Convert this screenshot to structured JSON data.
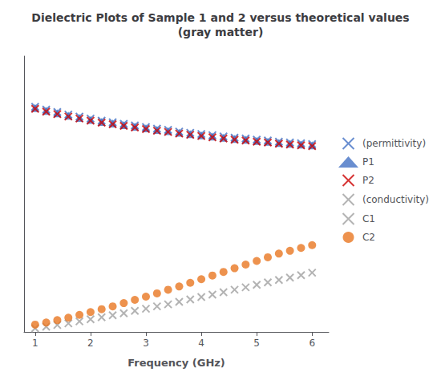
{
  "chart_data": {
    "type": "scatter",
    "title": "Dielectric Plots of Sample 1 and 2 versus theoretical values\n(gray matter)",
    "xlabel": "Frequency (GHz)",
    "x": [
      1.0,
      1.2,
      1.4,
      1.6,
      1.8,
      2.0,
      2.2,
      2.4,
      2.6,
      2.8,
      3.0,
      3.2,
      3.4,
      3.6,
      3.8,
      4.0,
      4.2,
      4.4,
      4.6,
      4.8,
      5.0,
      5.2,
      5.4,
      5.6,
      5.8,
      6.0
    ],
    "series": [
      {
        "name": "(permittivity)",
        "color": "#4472C4",
        "marker": "x",
        "values": [
          5.55,
          5.48,
          5.42,
          5.36,
          5.31,
          5.26,
          5.21,
          5.17,
          5.13,
          5.09,
          5.05,
          5.01,
          4.98,
          4.94,
          4.91,
          4.88,
          4.85,
          4.82,
          4.79,
          4.77,
          4.74,
          4.72,
          4.69,
          4.67,
          4.65,
          4.63
        ]
      },
      {
        "name": "P1",
        "color": "#4472C4",
        "marker": "triangle",
        "values": [
          5.52,
          5.45,
          5.39,
          5.33,
          5.28,
          5.23,
          5.18,
          5.14,
          5.1,
          5.06,
          5.02,
          4.98,
          4.95,
          4.91,
          4.88,
          4.85,
          4.82,
          4.79,
          4.76,
          4.74,
          4.71,
          4.69,
          4.66,
          4.64,
          4.62,
          4.6
        ]
      },
      {
        "name": "P2",
        "color": "#CC0000",
        "marker": "x",
        "values": [
          5.5,
          5.43,
          5.37,
          5.31,
          5.26,
          5.21,
          5.16,
          5.12,
          5.08,
          5.04,
          5.0,
          4.96,
          4.93,
          4.89,
          4.86,
          4.83,
          4.8,
          4.77,
          4.74,
          4.72,
          4.69,
          4.67,
          4.64,
          4.62,
          4.6,
          4.58
        ]
      },
      {
        "name": "(conductivity)",
        "color": "#A0A0A0",
        "marker": "x",
        "values": [
          null,
          null,
          null,
          null,
          null,
          null,
          null,
          null,
          null,
          null,
          null,
          null,
          null,
          null,
          null,
          null,
          null,
          null,
          null,
          null,
          null,
          null,
          null,
          null,
          null,
          null
        ]
      },
      {
        "name": "C1",
        "color": "#A0A0A0",
        "marker": "x",
        "values": [
          0.09,
          0.13,
          0.17,
          0.21,
          0.26,
          0.31,
          0.36,
          0.41,
          0.46,
          0.52,
          0.57,
          0.63,
          0.68,
          0.74,
          0.8,
          0.86,
          0.92,
          0.98,
          1.04,
          1.1,
          1.16,
          1.22,
          1.28,
          1.34,
          1.4,
          1.46
        ]
      },
      {
        "name": "C2",
        "color": "#E87722",
        "marker": "circle",
        "values": [
          0.18,
          0.23,
          0.29,
          0.35,
          0.42,
          0.49,
          0.56,
          0.63,
          0.71,
          0.79,
          0.87,
          0.95,
          1.04,
          1.12,
          1.21,
          1.3,
          1.39,
          1.48,
          1.57,
          1.66,
          1.75,
          1.84,
          1.93,
          2.0,
          2.07,
          2.14
        ]
      }
    ],
    "xlim": [
      0.8,
      6.3
    ],
    "xticks": [
      1,
      2,
      3,
      4,
      5,
      6
    ],
    "ylim": [
      0,
      6.8
    ],
    "yticks": [],
    "tick_labels": "x",
    "grid": false,
    "legend": "right"
  }
}
